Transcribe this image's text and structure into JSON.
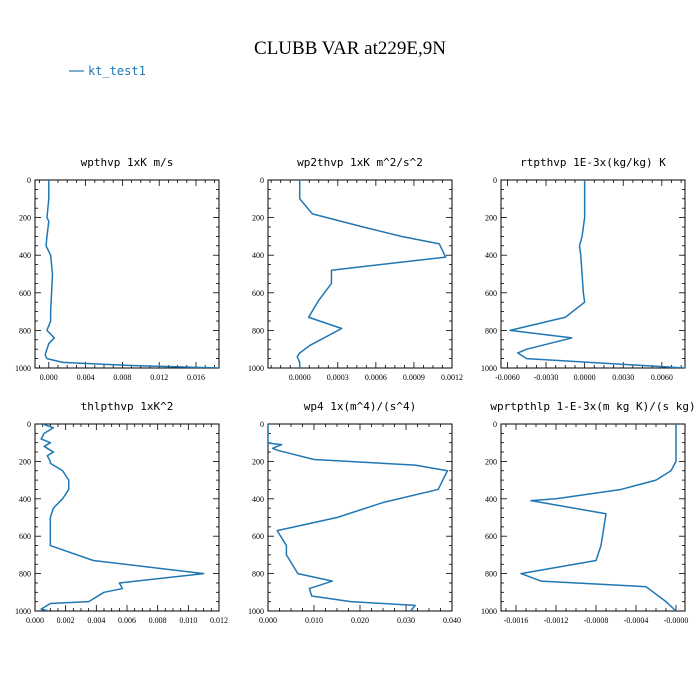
{
  "figure": {
    "title": "CLUBB VAR at229E,9N",
    "legend": {
      "label": "kt_test1",
      "color": "#1f77b4",
      "placement": "top-left"
    }
  },
  "chart_data": [
    {
      "type": "line",
      "title": "wpthvp   1xK  m/s",
      "ylim": [
        0,
        1000
      ],
      "yticks": [
        0,
        200,
        400,
        600,
        800,
        1000
      ],
      "ytick_labels": [
        "0",
        "200",
        "400",
        "600",
        "800",
        "1000"
      ],
      "y_inverted": true,
      "xlim": [
        -0.0015,
        0.0185
      ],
      "xticks": [
        0.0,
        0.004,
        0.008,
        0.012,
        0.016
      ],
      "xtick_labels": [
        "0.000",
        "0.004",
        "0.008",
        "0.012",
        "0.016"
      ],
      "series": [
        {
          "color": "#1f77b4",
          "x": [
            0.0,
            0.0,
            -0.0002,
            0.0,
            -0.0002,
            -0.0003,
            0.0002,
            0.0004,
            0.0003,
            0.0002,
            0.0002,
            -0.0002,
            0.0006,
            0.0,
            -0.0004,
            -0.0002,
            0.0015,
            0.008,
            0.0185
          ],
          "y": [
            0,
            100,
            200,
            220,
            300,
            350,
            400,
            500,
            600,
            700,
            750,
            800,
            840,
            870,
            930,
            950,
            970,
            985,
            1000
          ]
        }
      ]
    },
    {
      "type": "line",
      "title": "wp2thvp   1xK  m^2/s^2",
      "ylim": [
        0,
        1000
      ],
      "yticks": [
        0,
        200,
        400,
        600,
        800,
        1000
      ],
      "ytick_labels": [
        "0",
        "200",
        "400",
        "600",
        "800",
        "1000"
      ],
      "y_inverted": true,
      "xlim": [
        -0.00025,
        0.0012
      ],
      "xticks": [
        0.0,
        0.0003,
        0.0006,
        0.0009,
        0.0012
      ],
      "xtick_labels": [
        "0.0000",
        "0.0003",
        "0.0006",
        "0.0009",
        "0.0012"
      ],
      "series": [
        {
          "color": "#1f77b4",
          "x": [
            0.0,
            0.0,
            0.0001,
            0.0005,
            0.0008,
            0.0011,
            0.00115,
            0.00025,
            0.00025,
            0.00015,
            7e-05,
            0.00033,
            8e-05,
            0.0,
            -2e-05,
            0.0,
            0.0
          ],
          "y": [
            0,
            100,
            180,
            250,
            300,
            340,
            410,
            480,
            550,
            640,
            730,
            790,
            880,
            920,
            940,
            970,
            1000
          ]
        }
      ]
    },
    {
      "type": "line",
      "title": "rtpthvp   1E-3x(kg/kg) K",
      "ylim": [
        0,
        1000
      ],
      "yticks": [
        0,
        200,
        400,
        600,
        800,
        1000
      ],
      "ytick_labels": [
        "0",
        "200",
        "400",
        "600",
        "800",
        "1000"
      ],
      "y_inverted": true,
      "xlim": [
        -0.0065,
        0.0078
      ],
      "xticks": [
        -0.006,
        -0.003,
        0.0,
        0.003,
        0.006
      ],
      "xtick_labels": [
        "-0.0060",
        "-0.0030",
        "0.0000",
        "0.0030",
        "0.0060"
      ],
      "series": [
        {
          "color": "#1f77b4",
          "x": [
            0.0,
            0.0,
            -0.0002,
            -0.0004,
            -0.0003,
            -0.0002,
            -0.0001,
            0.0,
            -0.0015,
            -0.0058,
            -0.001,
            -0.0045,
            -0.0052,
            -0.0045,
            0.0078
          ],
          "y": [
            0,
            200,
            300,
            350,
            400,
            500,
            600,
            650,
            730,
            800,
            840,
            900,
            920,
            950,
            1000
          ]
        }
      ]
    },
    {
      "type": "line",
      "title": "thlpthvp   1xK^2",
      "ylim": [
        0,
        1000
      ],
      "yticks": [
        0,
        200,
        400,
        600,
        800,
        1000
      ],
      "ytick_labels": [
        "0",
        "200",
        "400",
        "600",
        "800",
        "1000"
      ],
      "y_inverted": true,
      "xlim": [
        0.0,
        0.012
      ],
      "xticks": [
        0.0,
        0.002,
        0.004,
        0.006,
        0.008,
        0.01,
        0.012
      ],
      "xtick_labels": [
        "0.000",
        "0.002",
        "0.004",
        "0.006",
        "0.008",
        "0.010",
        "0.012"
      ],
      "series": [
        {
          "color": "#1f77b4",
          "x": [
            0.0005,
            0.0012,
            0.0006,
            0.0004,
            0.001,
            0.0006,
            0.0012,
            0.0008,
            0.001,
            0.001,
            0.0018,
            0.0022,
            0.0022,
            0.0018,
            0.0012,
            0.001,
            0.001,
            0.001,
            0.0038,
            0.011,
            0.0055,
            0.0057,
            0.0045,
            0.0035,
            0.001,
            0.0004,
            0.0009
          ],
          "y": [
            0,
            20,
            50,
            80,
            100,
            120,
            150,
            170,
            200,
            210,
            250,
            300,
            350,
            400,
            450,
            500,
            600,
            650,
            730,
            800,
            850,
            880,
            900,
            950,
            960,
            990,
            1000
          ]
        }
      ]
    },
    {
      "type": "line",
      "title": "wp4   1x(m^4)/(s^4)",
      "ylim": [
        0,
        1000
      ],
      "yticks": [
        0,
        200,
        400,
        600,
        800,
        1000
      ],
      "ytick_labels": [
        "0",
        "200",
        "400",
        "600",
        "800",
        "1000"
      ],
      "y_inverted": true,
      "xlim": [
        0.0,
        0.04
      ],
      "xticks": [
        0.0,
        0.01,
        0.02,
        0.03,
        0.04
      ],
      "xtick_labels": [
        "0.000",
        "0.010",
        "0.020",
        "0.030",
        "0.040"
      ],
      "series": [
        {
          "color": "#1f77b4",
          "x": [
            0.0,
            0.0,
            0.0,
            0.001,
            0.003,
            0.001,
            0.002,
            0.01,
            0.032,
            0.039,
            0.037,
            0.025,
            0.015,
            0.002,
            0.004,
            0.004,
            0.0065,
            0.014,
            0.009,
            0.0095,
            0.018,
            0.032,
            0.031
          ],
          "y": [
            0,
            50,
            100,
            105,
            110,
            130,
            140,
            190,
            220,
            250,
            350,
            420,
            500,
            570,
            650,
            700,
            800,
            840,
            880,
            920,
            950,
            970,
            1000
          ]
        }
      ]
    },
    {
      "type": "line",
      "title": "wprtpthlp   1-E-3x(m kg K)/(s kg)",
      "ylim": [
        0,
        1000
      ],
      "yticks": [
        0,
        200,
        400,
        600,
        800,
        1000
      ],
      "ytick_labels": [
        "0",
        "200",
        "400",
        "600",
        "800",
        "1000"
      ],
      "y_inverted": true,
      "xlim": [
        -0.00175,
        9e-05
      ],
      "xticks": [
        -0.0016,
        -0.0012,
        -0.0008,
        -0.0004,
        0.0
      ],
      "xtick_labels": [
        "-0.0016",
        "-0.0012",
        "-0.0008",
        "-0.0004",
        "-0.0000"
      ],
      "series": [
        {
          "color": "#1f77b4",
          "x": [
            0.0,
            0.0,
            -5e-05,
            -0.0002,
            -0.00055,
            -0.0012,
            -0.00145,
            -0.0007,
            -0.00075,
            -0.0008,
            -0.00155,
            -0.00135,
            -0.0003,
            -0.0001,
            0.0
          ],
          "y": [
            0,
            200,
            250,
            300,
            350,
            400,
            410,
            480,
            650,
            730,
            800,
            840,
            870,
            950,
            1000
          ]
        }
      ]
    }
  ]
}
